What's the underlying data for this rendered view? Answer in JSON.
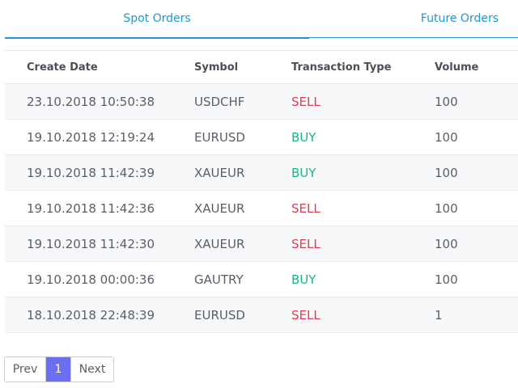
{
  "tabs": [
    {
      "label": "Spot Orders",
      "active": true
    },
    {
      "label": "Future Orders",
      "active": false
    }
  ],
  "table": {
    "columns": [
      "Create Date",
      "Symbol",
      "Transaction Type",
      "Volume"
    ],
    "rows": [
      {
        "date": "23.10.2018 10:50:38",
        "symbol": "USDCHF",
        "type": "SELL",
        "volume": "100"
      },
      {
        "date": "19.10.2018 12:19:24",
        "symbol": "EURUSD",
        "type": "BUY",
        "volume": "100"
      },
      {
        "date": "19.10.2018 11:42:39",
        "symbol": "XAUEUR",
        "type": "BUY",
        "volume": "100"
      },
      {
        "date": "19.10.2018 11:42:36",
        "symbol": "XAUEUR",
        "type": "SELL",
        "volume": "100"
      },
      {
        "date": "19.10.2018 11:42:30",
        "symbol": "XAUEUR",
        "type": "SELL",
        "volume": "100"
      },
      {
        "date": "19.10.2018 00:00:36",
        "symbol": "GAUTRY",
        "type": "BUY",
        "volume": "100"
      },
      {
        "date": "18.10.2018 22:48:39",
        "symbol": "EURUSD",
        "type": "SELL",
        "volume": "1"
      }
    ]
  },
  "pagination": {
    "prev_label": "Prev",
    "current_page": "1",
    "next_label": "Next"
  },
  "colors": {
    "accent": "#1f95d6",
    "sell": "#e8394f",
    "buy": "#1fb582",
    "page_active": "#6c6ef0"
  }
}
